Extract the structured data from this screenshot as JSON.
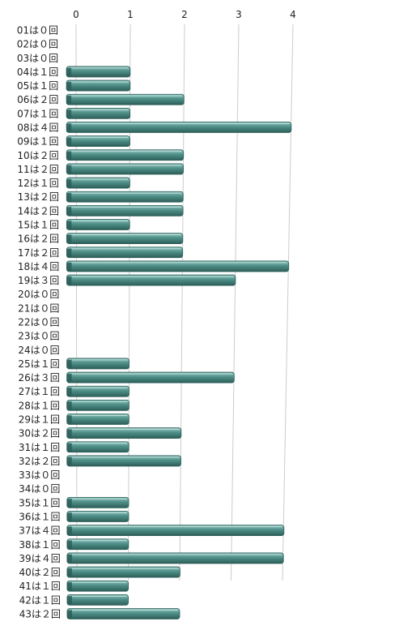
{
  "colors": {
    "bar": "#4e8f88",
    "bar_light": "#8ec4bd",
    "bar_dark": "#2d5e58",
    "grid": "#cccccc",
    "text": "#222222"
  },
  "chart_data": {
    "type": "bar",
    "orientation": "horizontal",
    "title": "",
    "xlabel": "",
    "ylabel": "",
    "xlim": [
      0,
      4
    ],
    "x_ticks": [
      "0",
      "1",
      "2",
      "3",
      "4"
    ],
    "grid": true,
    "legend": "none",
    "categories": [
      "01",
      "02",
      "03",
      "04",
      "05",
      "06",
      "07",
      "08",
      "09",
      "10",
      "11",
      "12",
      "13",
      "14",
      "15",
      "16",
      "17",
      "18",
      "19",
      "20",
      "21",
      "22",
      "23",
      "24",
      "25",
      "26",
      "27",
      "28",
      "29",
      "30",
      "31",
      "32",
      "33",
      "34",
      "35",
      "36",
      "37",
      "38",
      "39",
      "40",
      "41",
      "42",
      "43"
    ],
    "labels": [
      "01は０回",
      "02は０回",
      "03は０回",
      "04は１回",
      "05は１回",
      "06は２回",
      "07は１回",
      "08は４回",
      "09は１回",
      "10は２回",
      "11は２回",
      "12は１回",
      "13は２回",
      "14は２回",
      "15は１回",
      "16は２回",
      "17は２回",
      "18は４回",
      "19は３回",
      "20は０回",
      "21は０回",
      "22は０回",
      "23は０回",
      "24は０回",
      "25は１回",
      "26は３回",
      "27は１回",
      "28は１回",
      "29は１回",
      "30は２回",
      "31は１回",
      "32は２回",
      "33は０回",
      "34は０回",
      "35は１回",
      "36は１回",
      "37は４回",
      "38は１回",
      "39は４回",
      "40は２回",
      "41は１回",
      "42は１回",
      "43は２回"
    ],
    "values": [
      0,
      0,
      0,
      1,
      1,
      2,
      1,
      4,
      1,
      2,
      2,
      1,
      2,
      2,
      1,
      2,
      2,
      4,
      3,
      0,
      0,
      0,
      0,
      0,
      1,
      3,
      1,
      1,
      1,
      2,
      1,
      2,
      0,
      0,
      1,
      1,
      4,
      1,
      4,
      2,
      1,
      1,
      2
    ]
  }
}
